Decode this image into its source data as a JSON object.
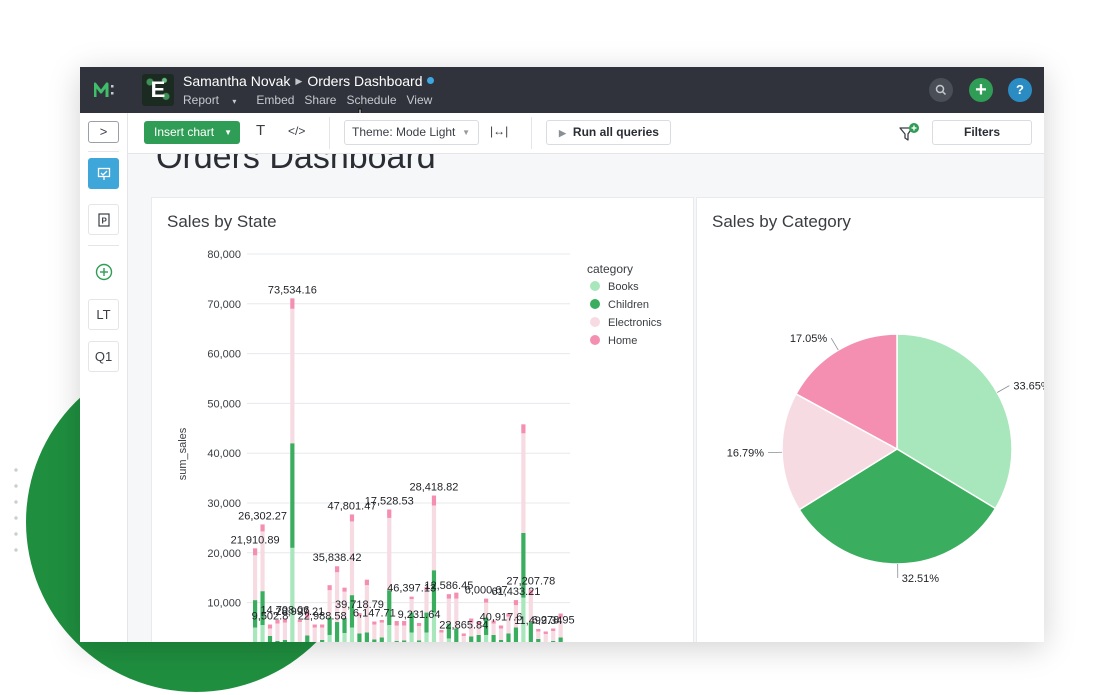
{
  "header": {
    "user": "Samantha Novak",
    "report": "Orders Dashboard",
    "org_initial": "E",
    "menu": [
      "Report",
      "Embed",
      "Share",
      "Schedule",
      "View"
    ]
  },
  "topbar_icons": {
    "search": "search-icon",
    "add": "plus-icon",
    "help": "?"
  },
  "toolbar": {
    "insert_chart": "Insert chart",
    "text_tool": "T",
    "code_tool": "</>",
    "theme": "Theme: Mode Light",
    "width_tool": "|↔|",
    "run_all": "Run all queries",
    "filters": "Filters"
  },
  "sidebar": {
    "items": [
      "LT",
      "Q1"
    ]
  },
  "report_title": "Orders Dashboard",
  "colors": {
    "books": "#a8e6bc",
    "children": "#3bad5f",
    "electronics": "#f7dbe3",
    "home": "#f48fb1",
    "topbar": "#30333b",
    "accent_green": "#2f9d56",
    "accent_blue": "#3ea6d8"
  },
  "chart_data": [
    {
      "type": "bar",
      "stacked": true,
      "title": "Sales by State",
      "ylabel": "sum_sales",
      "ylim": [
        0,
        80000
      ],
      "y_ticks": [
        "80,000",
        "70,000",
        "60,000",
        "50,000",
        "40,000",
        "30,000",
        "20,000",
        "10,000"
      ],
      "legend_title": "category",
      "legend_placement": "top-right",
      "series": [
        {
          "name": "Books",
          "values": [
            5000,
            5500,
            1800,
            1000,
            1200,
            21000,
            800,
            900,
            1000,
            800,
            3500,
            2100,
            3900,
            5000,
            1800,
            1000,
            1200,
            1000,
            5500,
            1000,
            1000,
            4000,
            1000,
            4000,
            8000,
            900,
            2800,
            2000,
            500,
            1200,
            1500,
            3500,
            1500,
            1500,
            1800,
            2000,
            11000,
            2000,
            1200,
            1000,
            1000,
            1500
          ]
        },
        {
          "name": "Children",
          "values": [
            5500,
            6800,
            1500,
            1300,
            1300,
            21000,
            800,
            2500,
            1000,
            1700,
            3500,
            4000,
            3000,
            6500,
            2000,
            3000,
            1400,
            2000,
            7000,
            1300,
            1400,
            4000,
            1400,
            4000,
            8500,
            1100,
            3000,
            2800,
            1300,
            2000,
            2000,
            3500,
            2000,
            1000,
            2000,
            3000,
            13000,
            4000,
            1500,
            1000,
            1300,
            1500
          ]
        },
        {
          "name": "Electronics",
          "values": [
            9000,
            12000,
            1500,
            3500,
            3500,
            27000,
            4500,
            3500,
            3000,
            2500,
            5500,
            10000,
            5300,
            14800,
            3500,
            9500,
            3000,
            3000,
            14500,
            3100,
            3000,
            2700,
            2900,
            4500,
            13000,
            2000,
            5000,
            6000,
            1500,
            2800,
            2100,
            3000,
            2300,
            2300,
            3400,
            4500,
            20000,
            5500,
            1500,
            1700,
            2000,
            4000
          ]
        },
        {
          "name": "Home",
          "values": [
            1400,
            1400,
            800,
            700,
            800,
            2100,
            400,
            1500,
            600,
            600,
            1000,
            1200,
            800,
            1400,
            600,
            1100,
            600,
            500,
            1700,
            900,
            900,
            500,
            600,
            600,
            2000,
            500,
            900,
            1200,
            500,
            800,
            600,
            800,
            600,
            600,
            600,
            1000,
            1800,
            1100,
            500,
            500,
            500,
            800
          ]
        }
      ],
      "data_labels": [
        {
          "bar": 0,
          "label": "21,910.89"
        },
        {
          "bar": 1,
          "label": "26,302.27"
        },
        {
          "bar": 2,
          "label": "9,502.8"
        },
        {
          "bar": 4,
          "label": "14,708.06"
        },
        {
          "bar": 5,
          "label": "73,534.16"
        },
        {
          "bar": 6,
          "label": "28,997.21"
        },
        {
          "bar": 9,
          "label": "22,988.58"
        },
        {
          "bar": 11,
          "label": "35,838.42"
        },
        {
          "bar": 13,
          "label": "47,801.47"
        },
        {
          "bar": 14,
          "label": "39,718.79"
        },
        {
          "bar": 16,
          "label": "6,147.71"
        },
        {
          "bar": 18,
          "label": "17,528.53"
        },
        {
          "bar": 21,
          "label": "46,397.13"
        },
        {
          "bar": 22,
          "label": "9,231.64"
        },
        {
          "bar": 24,
          "label": "28,418.82"
        },
        {
          "bar": 26,
          "label": "12,586.45"
        },
        {
          "bar": 28,
          "label": "22,865.84"
        },
        {
          "bar": 31,
          "label": "6,000.67"
        },
        {
          "bar": 33,
          "label": "40,917.6"
        },
        {
          "bar": 35,
          "label": "61,433.21"
        },
        {
          "bar": 37,
          "label": "27,207.78"
        },
        {
          "bar": 38,
          "label": "11,499.34"
        },
        {
          "bar": 40,
          "label": "6,278.95"
        }
      ]
    },
    {
      "type": "pie",
      "title": "Sales by Category",
      "slices": [
        {
          "name": "Books",
          "value": 33.65,
          "label": "33.65%"
        },
        {
          "name": "Children",
          "value": 32.51,
          "label": "32.51%"
        },
        {
          "name": "Electronics",
          "value": 16.79,
          "label": "16.79%"
        },
        {
          "name": "Home",
          "value": 17.05,
          "label": "17.05%"
        }
      ]
    }
  ]
}
